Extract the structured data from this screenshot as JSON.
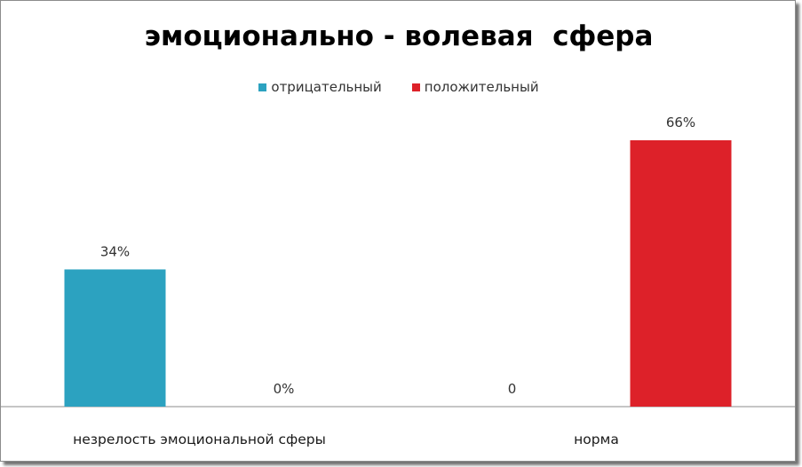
{
  "chart_data": {
    "type": "bar",
    "title": "эмоционально - волевая  сфера",
    "categories": [
      "незрелость эмоциональной сферы",
      "норма"
    ],
    "series": [
      {
        "name": "отрицательный",
        "color": "#2CA2C0",
        "values": [
          34,
          0
        ],
        "labels": [
          "34%",
          "0"
        ]
      },
      {
        "name": "положительный",
        "color": "#DD2129",
        "values": [
          0,
          66
        ],
        "labels": [
          "0%",
          "66%"
        ]
      }
    ],
    "ylim": [
      0,
      66
    ],
    "grid": false,
    "legend": "top"
  }
}
